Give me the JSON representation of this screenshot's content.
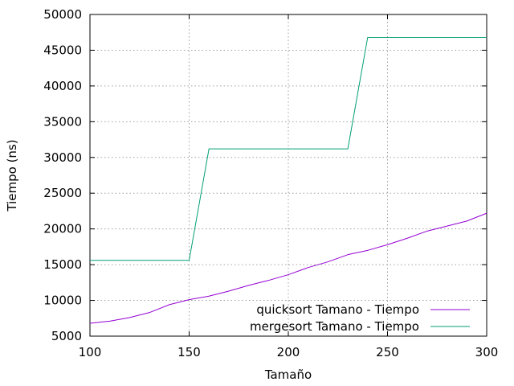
{
  "chart_data": {
    "type": "line",
    "title": "",
    "xlabel": "Tamaño",
    "ylabel": "Tiempo (ns)",
    "xlim": [
      100,
      300
    ],
    "ylim": [
      5000,
      50000
    ],
    "xticks": [
      100,
      150,
      200,
      250,
      300
    ],
    "yticks": [
      5000,
      10000,
      15000,
      20000,
      25000,
      30000,
      35000,
      40000,
      45000,
      50000
    ],
    "grid": true,
    "legend_position": "bottom-right",
    "series": [
      {
        "name": "quicksort Tamano - Tiempo",
        "color": "#9400d3",
        "x": [
          100,
          110,
          120,
          130,
          140,
          150,
          160,
          170,
          180,
          190,
          200,
          210,
          220,
          230,
          240,
          250,
          260,
          270,
          280,
          290,
          300
        ],
        "y": [
          6800,
          7100,
          7600,
          8300,
          9400,
          10100,
          10600,
          11300,
          12100,
          12800,
          13600,
          14600,
          15400,
          16400,
          17000,
          17800,
          18700,
          19700,
          20400,
          21100,
          22200
        ]
      },
      {
        "name": "mergesort Tamano - Tiempo",
        "color": "#009e73",
        "x": [
          100,
          110,
          120,
          130,
          140,
          150,
          160,
          170,
          180,
          190,
          200,
          210,
          220,
          230,
          240,
          250,
          260,
          270,
          280,
          290,
          300
        ],
        "y": [
          15600,
          15600,
          15600,
          15600,
          15600,
          15600,
          31200,
          31200,
          31200,
          31200,
          31200,
          31200,
          31200,
          31200,
          46800,
          46800,
          46800,
          46800,
          46800,
          46800,
          46800
        ]
      }
    ]
  }
}
